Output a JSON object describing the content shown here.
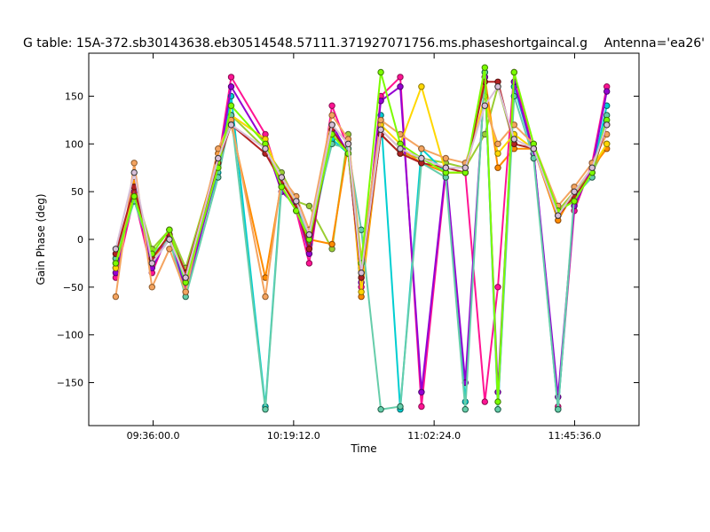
{
  "chart_data": {
    "type": "line",
    "title": "G table: 15A-372.sb30143638.eb30514548.57111.371927071756.ms.phaseshortgaincal.g",
    "subtitle": "Antenna='ea26'",
    "xlabel": "Time",
    "ylabel": "Gain Phase (deg)",
    "xlim": [
      "09:16:12.0",
      "12:05:24.0"
    ],
    "ylim": [
      -195,
      195
    ],
    "x_ticks": [
      "09:36:00.0",
      "10:19:12.0",
      "11:02:24.0",
      "11:45:36.0"
    ],
    "y_ticks": [
      -150,
      -100,
      -50,
      0,
      50,
      100,
      150
    ],
    "grid": false,
    "legend": "none",
    "series": [
      {
        "color": "#9acd32",
        "edge": "#556b2f",
        "x": [
          "09:24:30",
          "09:30:10",
          "09:35:40",
          "09:41:00",
          "09:46:00",
          "09:56:00",
          "10:00:00",
          "10:10:30",
          "10:15:30",
          "10:20:00",
          "10:24:00",
          "10:31:00",
          "10:36:00",
          "10:40:00",
          "10:46:00",
          "10:52:00",
          "10:58:30",
          "11:06:00",
          "11:12:00",
          "11:18:00",
          "11:22:00",
          "11:27:00",
          "11:33:00",
          "11:40:30",
          "11:45:30",
          "11:51:00",
          "11:55:30"
        ],
        "y": [
          -20,
          55,
          -10,
          10,
          -30,
          85,
          130,
          95,
          70,
          40,
          35,
          -10,
          110,
          -40,
          110,
          90,
          85,
          80,
          75,
          110,
          160,
          100,
          95,
          30,
          50,
          70,
          100
        ]
      },
      {
        "color": "#ff8c00",
        "edge": "#8b4500",
        "x": [
          "09:24:30",
          "09:30:10",
          "09:35:40",
          "09:41:00",
          "09:46:00",
          "09:56:00",
          "10:00:00",
          "10:10:30",
          "10:15:30",
          "10:20:00",
          "10:24:00",
          "10:31:00",
          "10:36:00",
          "10:40:00",
          "10:46:00",
          "10:52:00",
          "10:58:30",
          "11:06:00",
          "11:12:00",
          "11:18:00",
          "11:22:00",
          "11:27:00",
          "11:33:00",
          "11:40:30",
          "11:45:30",
          "11:51:00",
          "11:55:30"
        ],
        "y": [
          -30,
          60,
          -20,
          0,
          -40,
          90,
          120,
          -40,
          60,
          35,
          0,
          -5,
          100,
          -60,
          115,
          95,
          80,
          70,
          70,
          170,
          75,
          95,
          95,
          20,
          50,
          75,
          95
        ]
      },
      {
        "color": "#ff1493",
        "edge": "#8b0a50",
        "x": [
          "09:24:30",
          "09:30:10",
          "09:35:40",
          "09:41:00",
          "09:46:00",
          "09:56:00",
          "10:00:00",
          "10:10:30",
          "10:15:30",
          "10:20:00",
          "10:24:00",
          "10:31:00",
          "10:36:00",
          "10:40:00",
          "10:46:00",
          "10:52:00",
          "10:58:30",
          "11:06:00",
          "11:12:00",
          "11:18:00",
          "11:22:00",
          "11:27:00",
          "11:33:00",
          "11:40:30",
          "11:45:30",
          "11:51:00",
          "11:55:30"
        ],
        "y": [
          -40,
          45,
          -35,
          10,
          -50,
          80,
          170,
          110,
          55,
          30,
          -25,
          140,
          95,
          -50,
          150,
          170,
          -175,
          70,
          70,
          -170,
          -50,
          175,
          90,
          -175,
          30,
          80,
          160
        ]
      },
      {
        "color": "#00ced1",
        "edge": "#006060",
        "x": [
          "09:24:30",
          "09:30:10",
          "09:35:40",
          "09:41:00",
          "09:46:00",
          "09:56:00",
          "10:00:00",
          "10:10:30",
          "10:15:30",
          "10:20:00",
          "10:24:00",
          "10:31:00",
          "10:36:00",
          "10:40:00",
          "10:46:00",
          "10:52:00",
          "10:58:30",
          "11:06:00",
          "11:12:00",
          "11:18:00",
          "11:22:00",
          "11:27:00",
          "11:33:00",
          "11:40:30",
          "11:45:30",
          "11:51:00",
          "11:55:30"
        ],
        "y": [
          -25,
          50,
          -25,
          0,
          -45,
          70,
          150,
          -175,
          60,
          40,
          -5,
          105,
          90,
          -30,
          130,
          -178,
          95,
          70,
          -170,
          175,
          -178,
          160,
          90,
          -178,
          40,
          70,
          140
        ]
      },
      {
        "color": "#9400d3",
        "edge": "#4b0068",
        "x": [
          "09:24:30",
          "09:30:10",
          "09:35:40",
          "09:41:00",
          "09:46:00",
          "09:56:00",
          "10:00:00",
          "10:10:30",
          "10:15:30",
          "10:20:00",
          "10:24:00",
          "10:31:00",
          "10:36:00",
          "10:40:00",
          "10:46:00",
          "10:52:00",
          "10:58:30",
          "11:06:00",
          "11:12:00",
          "11:18:00",
          "11:22:00",
          "11:27:00",
          "11:33:00",
          "11:40:30",
          "11:45:30",
          "11:51:00",
          "11:55:30"
        ],
        "y": [
          -35,
          50,
          -30,
          5,
          -55,
          75,
          160,
          100,
          50,
          35,
          -15,
          120,
          90,
          -45,
          145,
          160,
          -160,
          75,
          -150,
          170,
          -160,
          165,
          90,
          -165,
          35,
          75,
          155
        ]
      },
      {
        "color": "#ffd700",
        "edge": "#8b7500",
        "x": [
          "09:24:30",
          "09:30:10",
          "09:35:40",
          "09:41:00",
          "09:46:00",
          "09:56:00",
          "10:00:00",
          "10:10:30",
          "10:15:30",
          "10:20:00",
          "10:24:00",
          "10:31:00",
          "10:36:00",
          "10:40:00",
          "10:46:00",
          "10:52:00",
          "10:58:30",
          "11:06:00",
          "11:12:00",
          "11:18:00",
          "11:22:00",
          "11:27:00",
          "11:33:00",
          "11:40:30",
          "11:45:30",
          "11:51:00",
          "11:55:30"
        ],
        "y": [
          -30,
          55,
          -20,
          5,
          -40,
          85,
          130,
          105,
          60,
          40,
          5,
          120,
          100,
          -55,
          120,
          100,
          160,
          70,
          70,
          150,
          90,
          110,
          95,
          25,
          50,
          75,
          100
        ]
      },
      {
        "color": "#66cdaa",
        "edge": "#1f5c46",
        "x": [
          "09:24:30",
          "09:30:10",
          "09:35:40",
          "09:41:00",
          "09:46:00",
          "09:56:00",
          "10:00:00",
          "10:10:30",
          "10:15:30",
          "10:20:00",
          "10:24:00",
          "10:31:00",
          "10:36:00",
          "10:40:00",
          "10:46:00",
          "10:52:00",
          "10:58:30",
          "11:06:00",
          "11:12:00",
          "11:18:00",
          "11:22:00",
          "11:27:00",
          "11:33:00",
          "11:40:30",
          "11:45:30",
          "11:51:00",
          "11:55:30"
        ],
        "y": [
          -20,
          40,
          -15,
          0,
          -60,
          65,
          130,
          -178,
          55,
          30,
          5,
          100,
          95,
          10,
          -178,
          -175,
          80,
          65,
          -178,
          175,
          -178,
          150,
          85,
          -178,
          45,
          65,
          130
        ]
      },
      {
        "color": "#f4a460",
        "edge": "#8b5a2b",
        "x": [
          "09:24:30",
          "09:30:10",
          "09:35:40",
          "09:41:00",
          "09:46:00",
          "09:56:00",
          "10:00:00",
          "10:10:30",
          "10:15:30",
          "10:20:00",
          "10:24:00",
          "10:31:00",
          "10:36:00",
          "10:40:00",
          "10:46:00",
          "10:52:00",
          "10:58:30",
          "11:06:00",
          "11:12:00",
          "11:18:00",
          "11:22:00",
          "11:27:00",
          "11:33:00",
          "11:40:30",
          "11:45:30",
          "11:51:00",
          "11:55:30"
        ],
        "y": [
          -60,
          80,
          -50,
          -10,
          -55,
          95,
          125,
          -60,
          65,
          45,
          10,
          130,
          105,
          -20,
          125,
          110,
          95,
          85,
          80,
          140,
          100,
          120,
          100,
          35,
          55,
          80,
          110
        ]
      },
      {
        "color": "#b22222",
        "edge": "#5c1010",
        "x": [
          "09:24:30",
          "09:30:10",
          "09:35:40",
          "09:41:00",
          "09:46:00",
          "09:56:00",
          "10:00:00",
          "10:10:30",
          "10:15:30",
          "10:20:00",
          "10:24:00",
          "10:31:00",
          "10:36:00",
          "10:40:00",
          "10:46:00",
          "10:52:00",
          "10:58:30",
          "11:06:00",
          "11:12:00",
          "11:18:00",
          "11:22:00",
          "11:27:00",
          "11:33:00",
          "11:40:30",
          "11:45:30",
          "11:51:00",
          "11:55:30"
        ],
        "y": [
          -15,
          55,
          -20,
          5,
          -35,
          80,
          120,
          90,
          60,
          35,
          -10,
          115,
          90,
          -40,
          110,
          90,
          80,
          75,
          70,
          165,
          165,
          100,
          95,
          25,
          45,
          70,
          120
        ]
      },
      {
        "color": "#7cfc00",
        "edge": "#3d7c00",
        "x": [
          "09:24:30",
          "09:30:10",
          "09:35:40",
          "09:41:00",
          "09:46:00",
          "09:56:00",
          "10:00:00",
          "10:10:30",
          "10:15:30",
          "10:20:00",
          "10:24:00",
          "10:31:00",
          "10:36:00",
          "10:40:00",
          "10:46:00",
          "10:52:00",
          "10:58:30",
          "11:06:00",
          "11:12:00",
          "11:18:00",
          "11:22:00",
          "11:27:00",
          "11:33:00",
          "11:40:30",
          "11:45:30",
          "11:51:00",
          "11:55:30"
        ],
        "y": [
          -25,
          45,
          -15,
          10,
          -45,
          75,
          140,
          100,
          55,
          30,
          0,
          110,
          90,
          -25,
          175,
          100,
          85,
          70,
          70,
          180,
          -170,
          175,
          100,
          30,
          40,
          70,
          125
        ]
      },
      {
        "color": "#d8bfd8",
        "edge": "#333333",
        "x": [
          "09:24:30",
          "09:30:10",
          "09:35:40",
          "09:41:00",
          "09:46:00",
          "09:56:00",
          "10:00:00",
          "10:10:30",
          "10:15:30",
          "10:20:00",
          "10:24:00",
          "10:31:00",
          "10:36:00",
          "10:40:00",
          "10:46:00",
          "10:52:00",
          "10:58:30",
          "11:06:00",
          "11:12:00",
          "11:18:00",
          "11:22:00",
          "11:27:00",
          "11:33:00",
          "11:40:30",
          "11:45:30",
          "11:51:00",
          "11:55:30"
        ],
        "y": [
          -10,
          70,
          -25,
          0,
          -40,
          85,
          120,
          95,
          65,
          40,
          5,
          120,
          100,
          -35,
          115,
          95,
          85,
          75,
          75,
          140,
          160,
          105,
          95,
          25,
          50,
          75,
          120
        ]
      }
    ]
  }
}
